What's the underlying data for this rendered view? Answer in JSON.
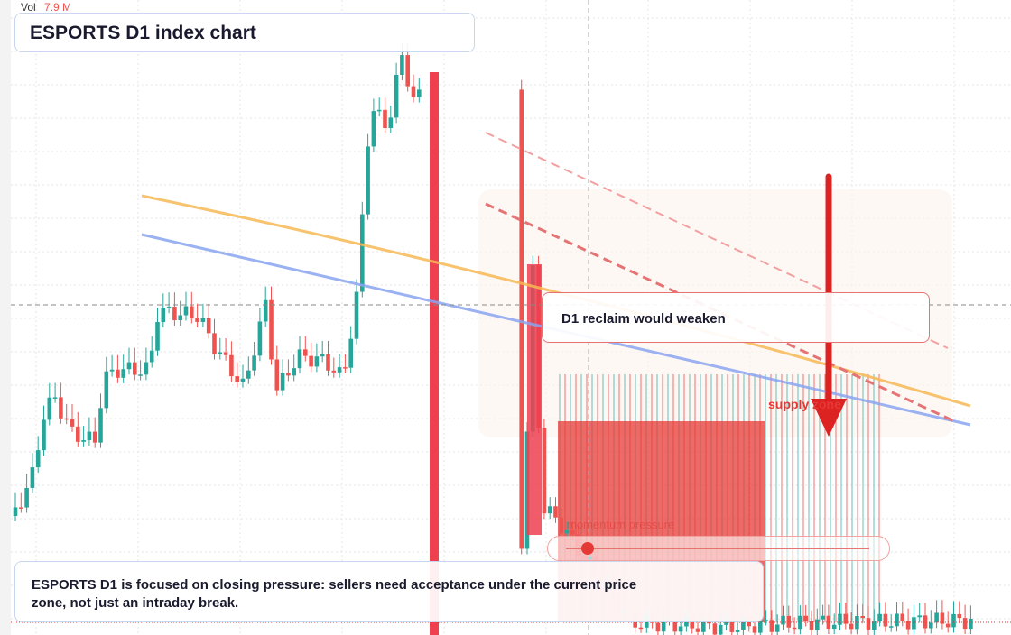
{
  "header": {
    "vol_label": "Vol",
    "vol_value": "7.9 M",
    "title": "ESPORTS D1 index chart"
  },
  "annotations": {
    "reclaim": "D1 reclaim would weaken",
    "supply": "supply zone",
    "momentum": "momentum pressure"
  },
  "footer": {
    "text": "ESPORTS D1 is focused on closing pressure: sellers need acceptance under the current price zone, not just an intraday break."
  }
}
